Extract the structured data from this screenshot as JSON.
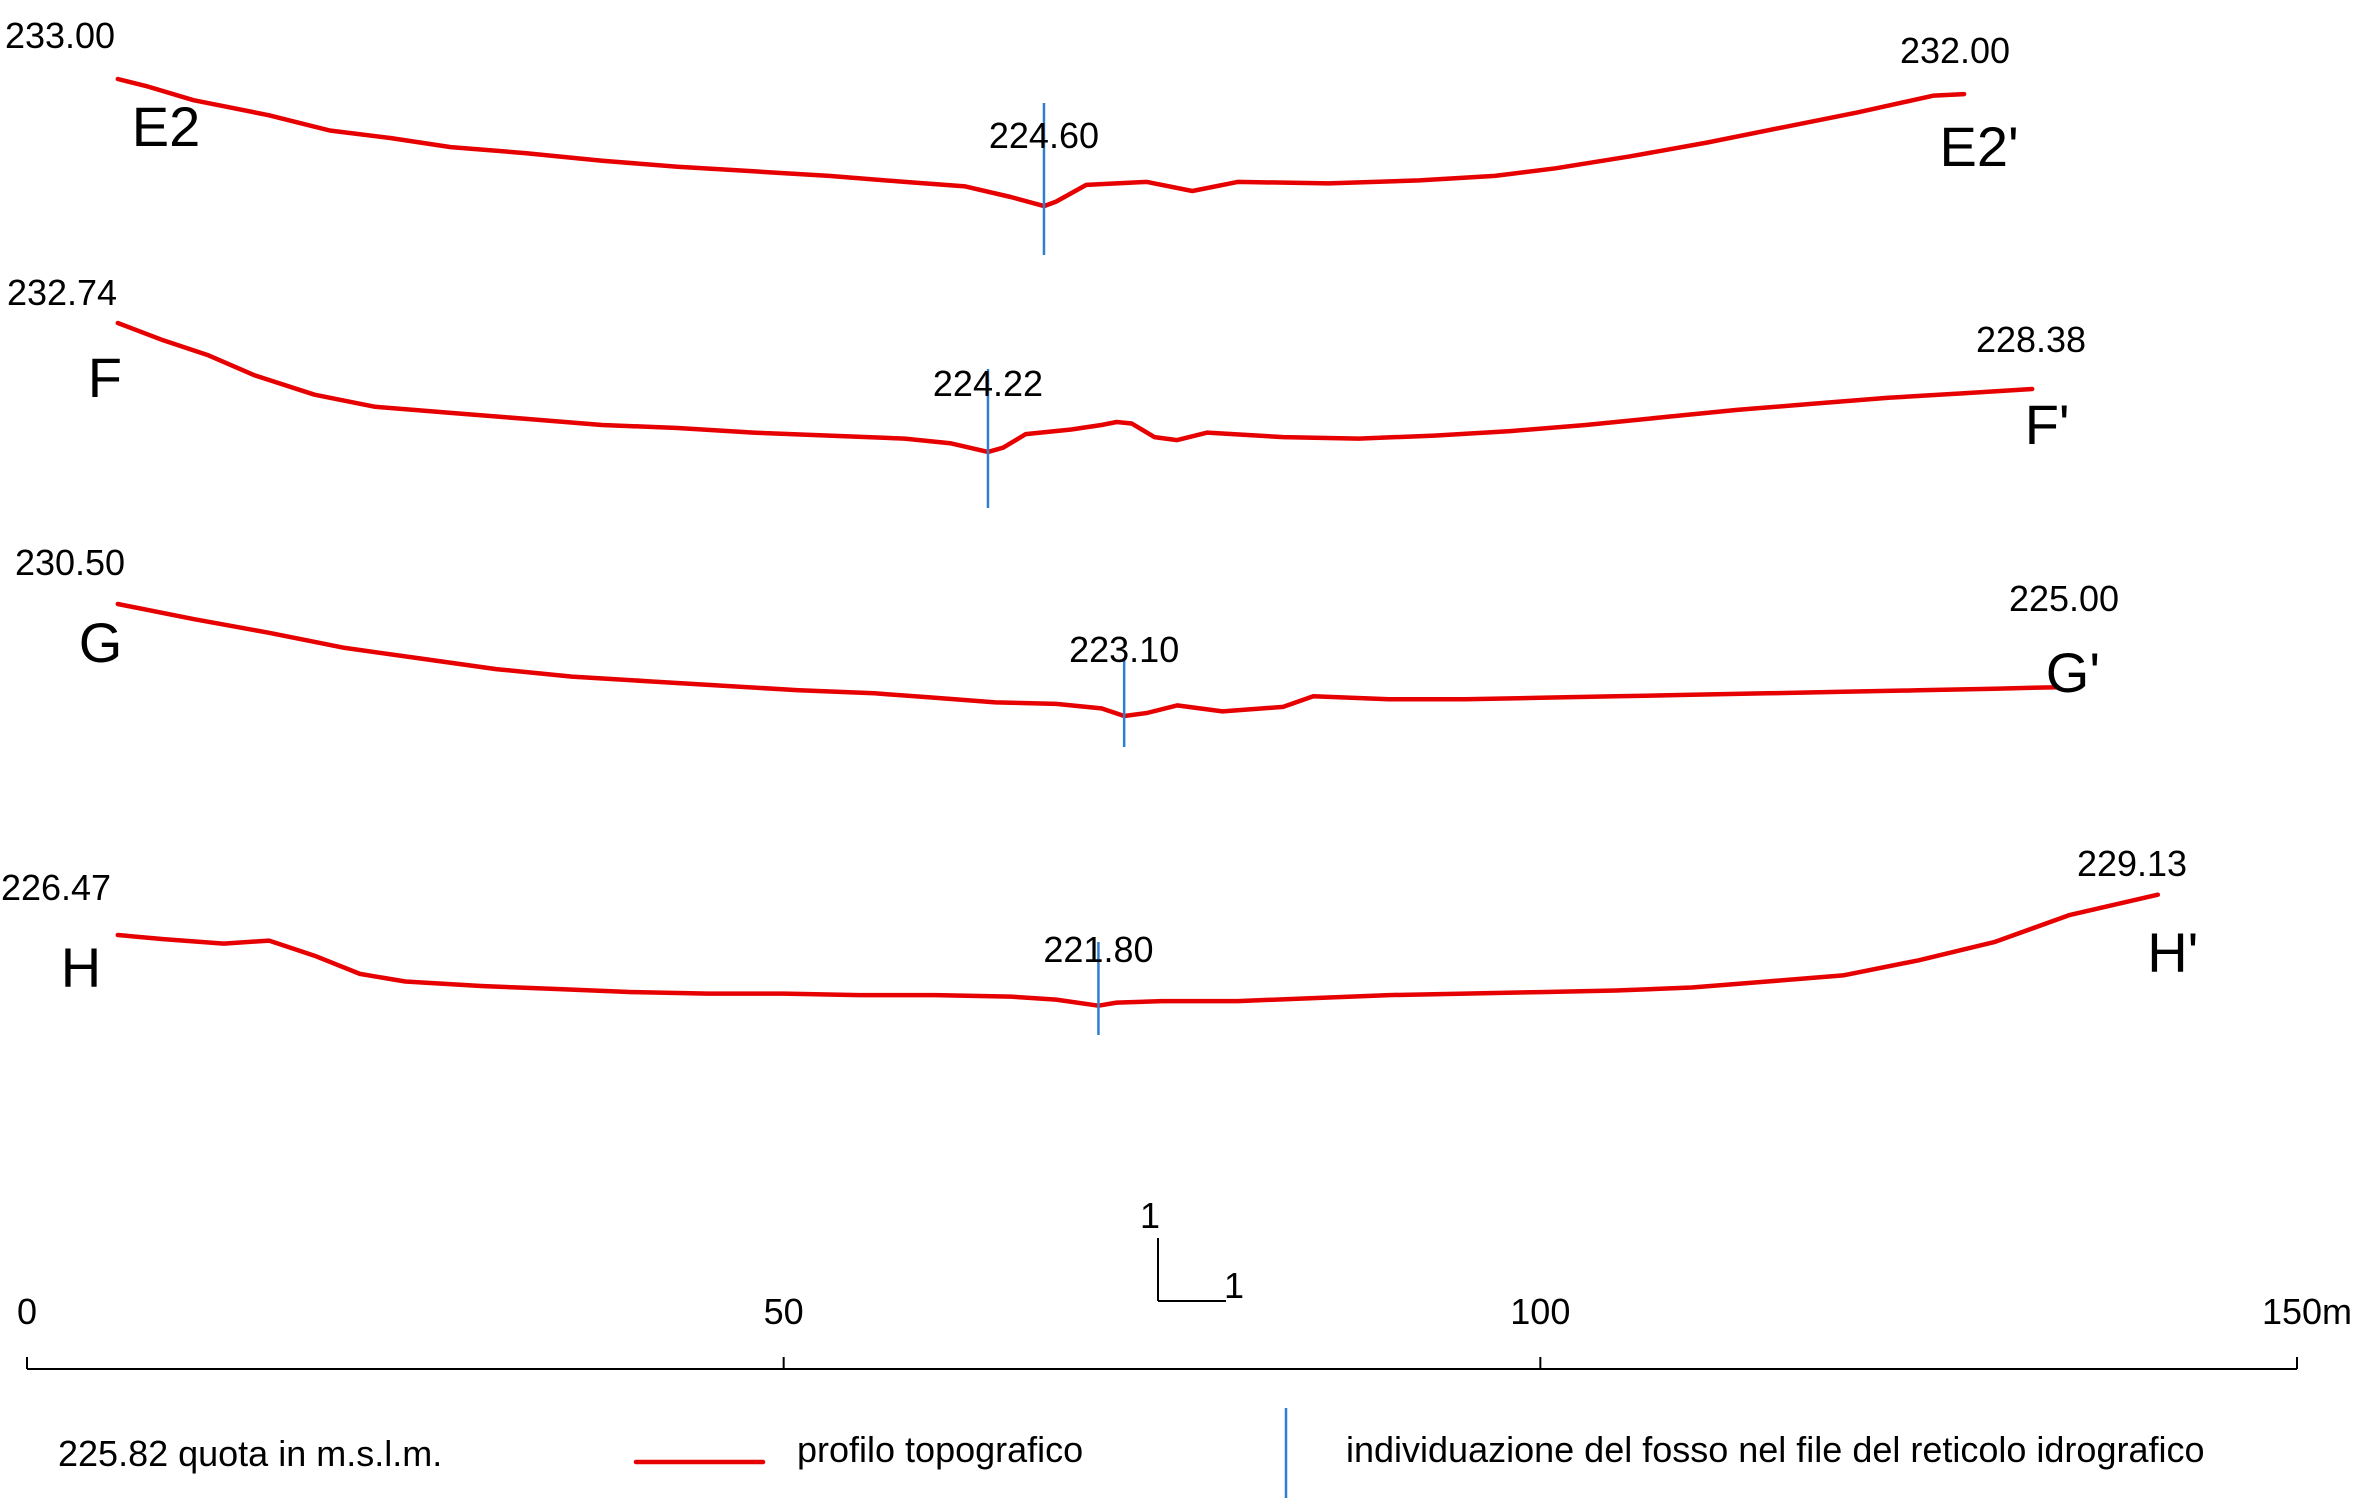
{
  "chart_data": {
    "type": "line",
    "x_scale": {
      "ticks": [
        0,
        50,
        100,
        150
      ],
      "labels": [
        "0",
        "50",
        "100",
        "150m"
      ]
    },
    "ratio_marker": {
      "vertical": "1",
      "horizontal": "1"
    },
    "profiles": [
      {
        "name": "E2",
        "name_end": "E2'",
        "start_elev": "233.00",
        "end_elev": "232.00",
        "ditch_elev": "224.60",
        "x_start": 6,
        "x_end": 128,
        "ditch_x": 67.2,
        "z_start": 233.0,
        "z_end": 232.0,
        "z_ditch": 224.6,
        "points": [
          [
            6,
            233.0
          ],
          [
            8,
            232.5
          ],
          [
            11,
            231.6
          ],
          [
            13,
            231.2
          ],
          [
            16,
            230.6
          ],
          [
            20,
            229.6
          ],
          [
            24,
            229.1
          ],
          [
            28,
            228.5
          ],
          [
            33,
            228.1
          ],
          [
            38,
            227.6
          ],
          [
            43,
            227.2
          ],
          [
            48,
            226.9
          ],
          [
            53,
            226.6
          ],
          [
            58,
            226.2
          ],
          [
            62,
            225.9
          ],
          [
            65,
            225.2
          ],
          [
            67.2,
            224.6
          ],
          [
            68,
            224.9
          ],
          [
            70,
            226.0
          ],
          [
            74,
            226.2
          ],
          [
            77,
            225.6
          ],
          [
            80,
            226.2
          ],
          [
            86,
            226.1
          ],
          [
            92,
            226.3
          ],
          [
            97,
            226.6
          ],
          [
            101,
            227.1
          ],
          [
            106,
            227.9
          ],
          [
            111,
            228.8
          ],
          [
            116,
            229.8
          ],
          [
            121,
            230.8
          ],
          [
            126,
            231.9
          ],
          [
            128,
            232.0
          ]
        ]
      },
      {
        "name": "F",
        "name_end": "F'",
        "start_elev": "232.74",
        "end_elev": "228.38",
        "ditch_elev": "224.22",
        "x_start": 6,
        "x_end": 132.5,
        "ditch_x": 63.5,
        "z_start": 232.74,
        "z_end": 228.38,
        "z_ditch": 224.22,
        "points": [
          [
            6,
            232.74
          ],
          [
            9,
            231.6
          ],
          [
            12,
            230.6
          ],
          [
            15,
            229.3
          ],
          [
            19,
            228.0
          ],
          [
            23,
            227.2
          ],
          [
            28,
            226.8
          ],
          [
            33,
            226.4
          ],
          [
            38,
            226.0
          ],
          [
            43,
            225.8
          ],
          [
            48,
            225.5
          ],
          [
            53,
            225.3
          ],
          [
            58,
            225.1
          ],
          [
            61,
            224.8
          ],
          [
            63.5,
            224.22
          ],
          [
            64.5,
            224.5
          ],
          [
            66,
            225.4
          ],
          [
            69,
            225.7
          ],
          [
            71,
            226.0
          ],
          [
            72,
            226.2
          ],
          [
            73,
            226.1
          ],
          [
            74.5,
            225.2
          ],
          [
            76,
            225.0
          ],
          [
            78,
            225.5
          ],
          [
            83,
            225.2
          ],
          [
            88,
            225.1
          ],
          [
            93,
            225.3
          ],
          [
            98,
            225.6
          ],
          [
            103,
            226.0
          ],
          [
            108,
            226.5
          ],
          [
            113,
            227.0
          ],
          [
            118,
            227.4
          ],
          [
            123,
            227.8
          ],
          [
            128,
            228.1
          ],
          [
            132.5,
            228.38
          ]
        ]
      },
      {
        "name": "G",
        "name_end": "G'",
        "start_elev": "230.50",
        "end_elev": "225.00",
        "ditch_elev": "223.10",
        "x_start": 6,
        "x_end": 134.2,
        "ditch_x": 72.5,
        "z_start": 230.5,
        "z_end": 225.0,
        "z_ditch": 223.1,
        "points": [
          [
            6,
            230.5
          ],
          [
            11,
            229.5
          ],
          [
            16,
            228.6
          ],
          [
            21,
            227.6
          ],
          [
            26,
            226.9
          ],
          [
            31,
            226.2
          ],
          [
            36,
            225.7
          ],
          [
            41,
            225.4
          ],
          [
            46,
            225.1
          ],
          [
            51,
            224.8
          ],
          [
            56,
            224.6
          ],
          [
            60,
            224.3
          ],
          [
            64,
            224.0
          ],
          [
            68,
            223.9
          ],
          [
            71,
            223.6
          ],
          [
            72.5,
            223.1
          ],
          [
            74,
            223.3
          ],
          [
            76,
            223.8
          ],
          [
            79,
            223.4
          ],
          [
            83,
            223.7
          ],
          [
            85,
            224.4
          ],
          [
            90,
            224.2
          ],
          [
            95,
            224.2
          ],
          [
            100,
            224.3
          ],
          [
            105,
            224.4
          ],
          [
            110,
            224.5
          ],
          [
            115,
            224.6
          ],
          [
            120,
            224.7
          ],
          [
            125,
            224.8
          ],
          [
            130,
            224.9
          ],
          [
            134.2,
            225.0
          ]
        ]
      },
      {
        "name": "H",
        "name_end": "H'",
        "start_elev": "226.47",
        "end_elev": "229.13",
        "ditch_elev": "221.80",
        "x_start": 6,
        "x_end": 140.8,
        "ditch_x": 70.8,
        "z_start": 226.47,
        "z_end": 229.13,
        "z_ditch": 221.8,
        "points": [
          [
            6,
            226.47
          ],
          [
            9,
            226.2
          ],
          [
            13,
            225.9
          ],
          [
            16,
            226.1
          ],
          [
            19,
            225.1
          ],
          [
            22,
            223.9
          ],
          [
            25,
            223.4
          ],
          [
            30,
            223.1
          ],
          [
            35,
            222.9
          ],
          [
            40,
            222.7
          ],
          [
            45,
            222.6
          ],
          [
            50,
            222.6
          ],
          [
            55,
            222.5
          ],
          [
            60,
            222.5
          ],
          [
            65,
            222.4
          ],
          [
            68,
            222.2
          ],
          [
            70.8,
            221.8
          ],
          [
            72,
            222.0
          ],
          [
            75,
            222.1
          ],
          [
            80,
            222.1
          ],
          [
            85,
            222.3
          ],
          [
            90,
            222.5
          ],
          [
            95,
            222.6
          ],
          [
            100,
            222.7
          ],
          [
            105,
            222.8
          ],
          [
            110,
            223.0
          ],
          [
            115,
            223.4
          ],
          [
            120,
            223.8
          ],
          [
            125,
            224.8
          ],
          [
            130,
            226.0
          ],
          [
            135,
            227.8
          ],
          [
            140.8,
            229.13
          ]
        ]
      }
    ]
  },
  "legend": {
    "quota_text": "225.82 quota in m.s.l.m.",
    "profile_label": "profilo topografico",
    "ditch_label": "individuazione del fosso nel file del reticolo idrografico",
    "profile_color": "#e60000",
    "ditch_color": "#2f7fd0"
  }
}
